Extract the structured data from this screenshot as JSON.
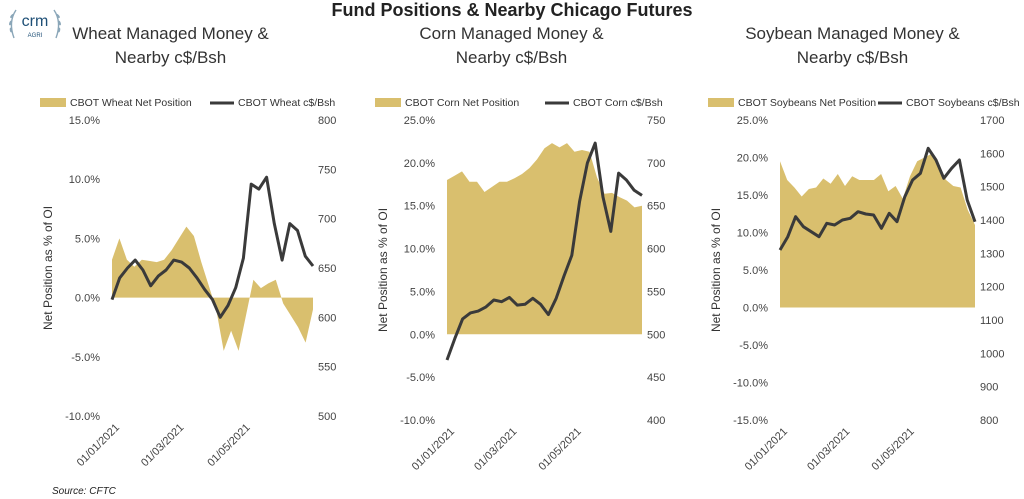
{
  "header": {
    "title": "Fund Positions & Nearby Chicago Futures",
    "logo_text": "crm",
    "logo_subtext": "AGRI",
    "source": "Source: CFTC"
  },
  "colors": {
    "area": "#d9bf6e",
    "line": "#3a3a3a"
  },
  "chart_data": [
    {
      "type": "area",
      "title": "Wheat Managed Money &\nNearby c$/Bsh",
      "ylabel": "Net Position as % of OI",
      "ylim": [
        -10,
        15
      ],
      "y2lim": [
        500,
        800
      ],
      "yticks": [
        "15.0%",
        "10.0%",
        "5.0%",
        "0.0%",
        "-5.0%",
        "-10.0%"
      ],
      "y2ticks": [
        "800",
        "750",
        "700",
        "650",
        "600",
        "550",
        "500"
      ],
      "xticks": [
        "01/01/2021",
        "01/03/2021",
        "01/05/2021"
      ],
      "series": [
        {
          "name": "CBOT Wheat Net Position",
          "type": "area",
          "values": [
            3.2,
            5.0,
            3.2,
            2.6,
            3.2,
            3.1,
            3.0,
            3.2,
            4.0,
            5.0,
            6.0,
            5.2,
            3.0,
            1.0,
            -1.0,
            -4.5,
            -2.8,
            -4.5,
            -1.5,
            1.5,
            0.8,
            1.2,
            1.5,
            -0.5,
            -1.5,
            -2.5,
            -3.8,
            -1.0
          ]
        },
        {
          "name": "CBOT Wheat c$/Bsh",
          "type": "line",
          "axis": "right",
          "values": [
            618,
            640,
            650,
            658,
            648,
            632,
            642,
            648,
            658,
            656,
            650,
            640,
            628,
            618,
            600,
            612,
            630,
            660,
            735,
            730,
            742,
            695,
            658,
            695,
            688,
            662,
            652
          ]
        }
      ]
    },
    {
      "type": "area",
      "title": "Corn Managed Money &\nNearby c$/Bsh",
      "ylabel": "Net Position as % of OI",
      "ylim": [
        -10,
        25
      ],
      "y2lim": [
        400,
        750
      ],
      "yticks": [
        "25.0%",
        "20.0%",
        "15.0%",
        "10.0%",
        "5.0%",
        "0.0%",
        "-5.0%",
        "-10.0%"
      ],
      "y2ticks": [
        "750",
        "700",
        "650",
        "600",
        "550",
        "500",
        "450",
        "400"
      ],
      "xticks": [
        "01/01/2021",
        "01/03/2021",
        "01/05/2021"
      ],
      "series": [
        {
          "name": "CBOT Corn Net Position",
          "type": "area",
          "values": [
            18.0,
            18.5,
            19.0,
            17.8,
            17.8,
            16.6,
            17.2,
            17.8,
            17.8,
            18.2,
            18.7,
            19.4,
            20.4,
            21.7,
            22.3,
            21.8,
            22.3,
            21.3,
            21.5,
            21.3,
            18.3,
            16.4,
            16.5,
            16.0,
            15.6,
            14.8,
            15.0
          ]
        },
        {
          "name": "CBOT Corn c$/Bsh",
          "type": "line",
          "axis": "right",
          "values": [
            470,
            495,
            518,
            525,
            527,
            532,
            540,
            538,
            543,
            534,
            535,
            542,
            535,
            523,
            542,
            568,
            592,
            655,
            700,
            723,
            660,
            620,
            688,
            680,
            668,
            662
          ]
        }
      ]
    },
    {
      "type": "area",
      "title": "Soybean Managed Money &\nNearby c$/Bsh",
      "ylabel": "Net Position as % of OI",
      "ylim": [
        -15,
        25
      ],
      "y2lim": [
        800,
        1700
      ],
      "yticks": [
        "25.0%",
        "20.0%",
        "15.0%",
        "10.0%",
        "5.0%",
        "0.0%",
        "-5.0%",
        "-10.0%",
        "-15.0%"
      ],
      "y2ticks": [
        "1700",
        "1600",
        "1500",
        "1400",
        "1300",
        "1200",
        "1100",
        "1000",
        "900",
        "800"
      ],
      "xticks": [
        "01/01/2021",
        "01/03/2021",
        "01/05/2021"
      ],
      "series": [
        {
          "name": "CBOT Soybeans Net Position",
          "type": "area",
          "values": [
            19.5,
            17.0,
            16.0,
            14.8,
            15.8,
            16.0,
            17.2,
            16.5,
            17.8,
            16.2,
            17.5,
            17.0,
            17.0,
            17.0,
            17.8,
            15.5,
            16.2,
            14.5,
            17.5,
            19.5,
            20.0,
            20.5,
            18.5,
            17.0,
            16.2,
            16.0,
            13.0,
            11.0
          ]
        },
        {
          "name": "CBOT Soybeans c$/Bsh",
          "type": "line",
          "axis": "right",
          "values": [
            1310,
            1350,
            1410,
            1380,
            1365,
            1350,
            1390,
            1385,
            1400,
            1405,
            1425,
            1418,
            1415,
            1375,
            1420,
            1395,
            1470,
            1520,
            1540,
            1615,
            1580,
            1525,
            1555,
            1580,
            1460,
            1395
          ]
        }
      ]
    }
  ]
}
